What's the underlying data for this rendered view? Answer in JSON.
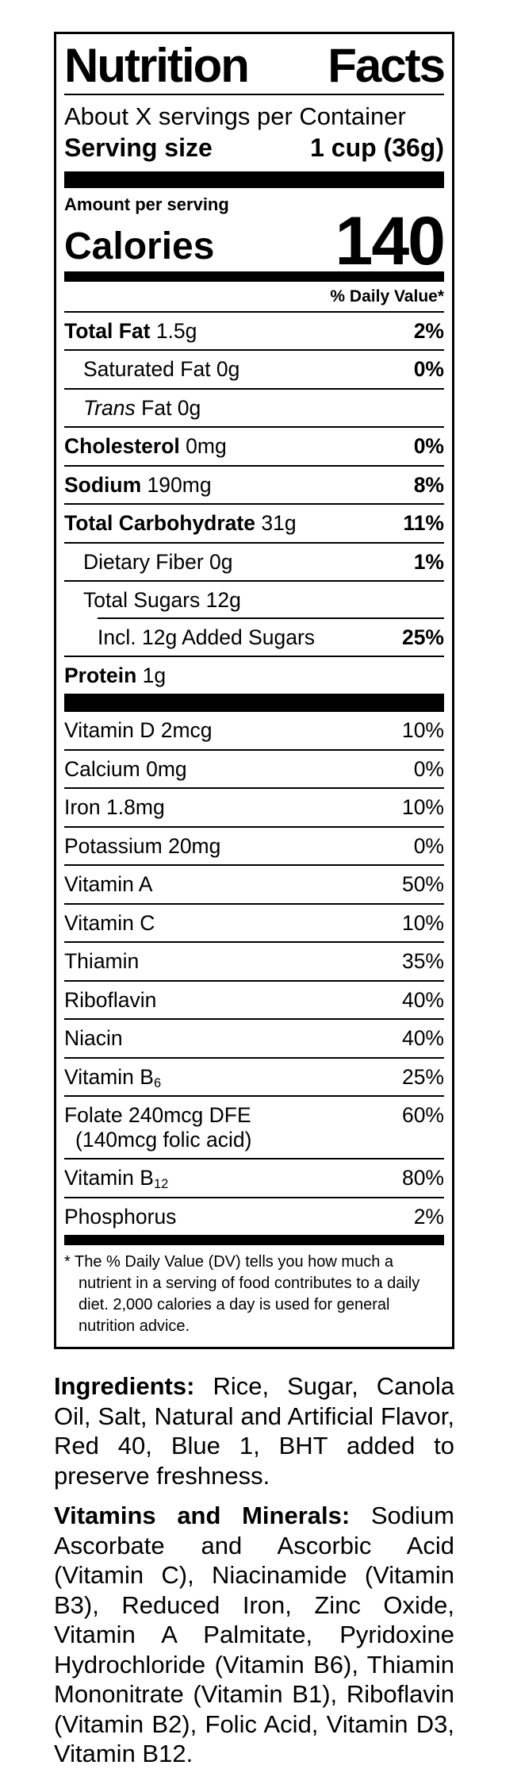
{
  "colors": {
    "text": "#000000",
    "background": "#ffffff"
  },
  "label": {
    "title_left": "Nutrition",
    "title_right": "Facts",
    "servings_per_container": "About X servings per Container",
    "serving_size_label": "Serving size",
    "serving_size_value": "1 cup (36g)",
    "amount_per_serving": "Amount per serving",
    "calories_label": "Calories",
    "calories_value": "140",
    "daily_value_header": "% Daily Value*",
    "nutrients": [
      {
        "name_bold": "Total Fat",
        "name_rest": " 1.5g",
        "dv": "2%",
        "indent": 0
      },
      {
        "name_rest": "Saturated Fat 0g",
        "dv": "0%",
        "indent": 1
      },
      {
        "name_italic": "Trans",
        "name_rest": " Fat 0g",
        "dv": "",
        "indent": 1
      },
      {
        "name_bold": "Cholesterol",
        "name_rest": " 0mg",
        "dv": "0%",
        "indent": 0
      },
      {
        "name_bold": "Sodium",
        "name_rest": " 190mg",
        "dv": "8%",
        "indent": 0
      },
      {
        "name_bold": "Total Carbohydrate",
        "name_rest": " 31g",
        "dv": "11%",
        "indent": 0
      },
      {
        "name_rest": "Dietary Fiber 0g",
        "dv": "1%",
        "indent": 1
      },
      {
        "name_rest": "Total Sugars 12g",
        "dv": "",
        "indent": 1
      },
      {
        "name_rest": "Incl. 12g Added Sugars",
        "dv": "25%",
        "indent": 2,
        "sep_indent": true
      },
      {
        "name_bold": "Protein",
        "name_rest": " 1g",
        "dv": "",
        "indent": 0
      }
    ],
    "vitamins": [
      {
        "name": "Vitamin D 2mcg",
        "dv": "10%"
      },
      {
        "name": "Calcium 0mg",
        "dv": "0%"
      },
      {
        "name": "Iron 1.8mg",
        "dv": "10%"
      },
      {
        "name": "Potassium 20mg",
        "dv": "0%"
      },
      {
        "name": "Vitamin A",
        "dv": "50%"
      },
      {
        "name": "Vitamin C",
        "dv": "10%"
      },
      {
        "name": "Thiamin",
        "dv": "35%"
      },
      {
        "name": "Riboflavin",
        "dv": "40%"
      },
      {
        "name": "Niacin",
        "dv": "40%"
      },
      {
        "name": "Vitamin B",
        "sub": "6",
        "dv": "25%"
      },
      {
        "name": "Folate 240mcg DFE",
        "line2": "(140mcg folic acid)",
        "dv": "60%"
      },
      {
        "name": "Vitamin B",
        "sub": "12",
        "dv": "80%"
      },
      {
        "name": "Phosphorus",
        "dv": "2%"
      }
    ],
    "footnote": "* The % Daily Value (DV) tells you how much a nutrient in a serving of food contributes to a daily diet. 2,000 calories a day is used for general nutrition advice."
  },
  "ingredients": {
    "heading": "Ingredients:",
    "text": " Rice, Sugar, Canola Oil, Salt, Natural and Artificial Flavor, Red 40, Blue 1, BHT added to preserve freshness."
  },
  "vitamins_minerals": {
    "heading": "Vitamins and Minerals:",
    "text": " Sodium Ascorbate and Ascorbic Acid (Vitamin C), Niacinamide (Vitamin B3), Reduced Iron, Zinc Oxide, Vitamin A Palmitate, Pyridoxine Hydrochloride (Vitamin B6), Thiamin Mononitrate (Vitamin B1), Riboflavin (Vitamin B2), Folic Acid, Vitamin D3, Vitamin B12."
  }
}
